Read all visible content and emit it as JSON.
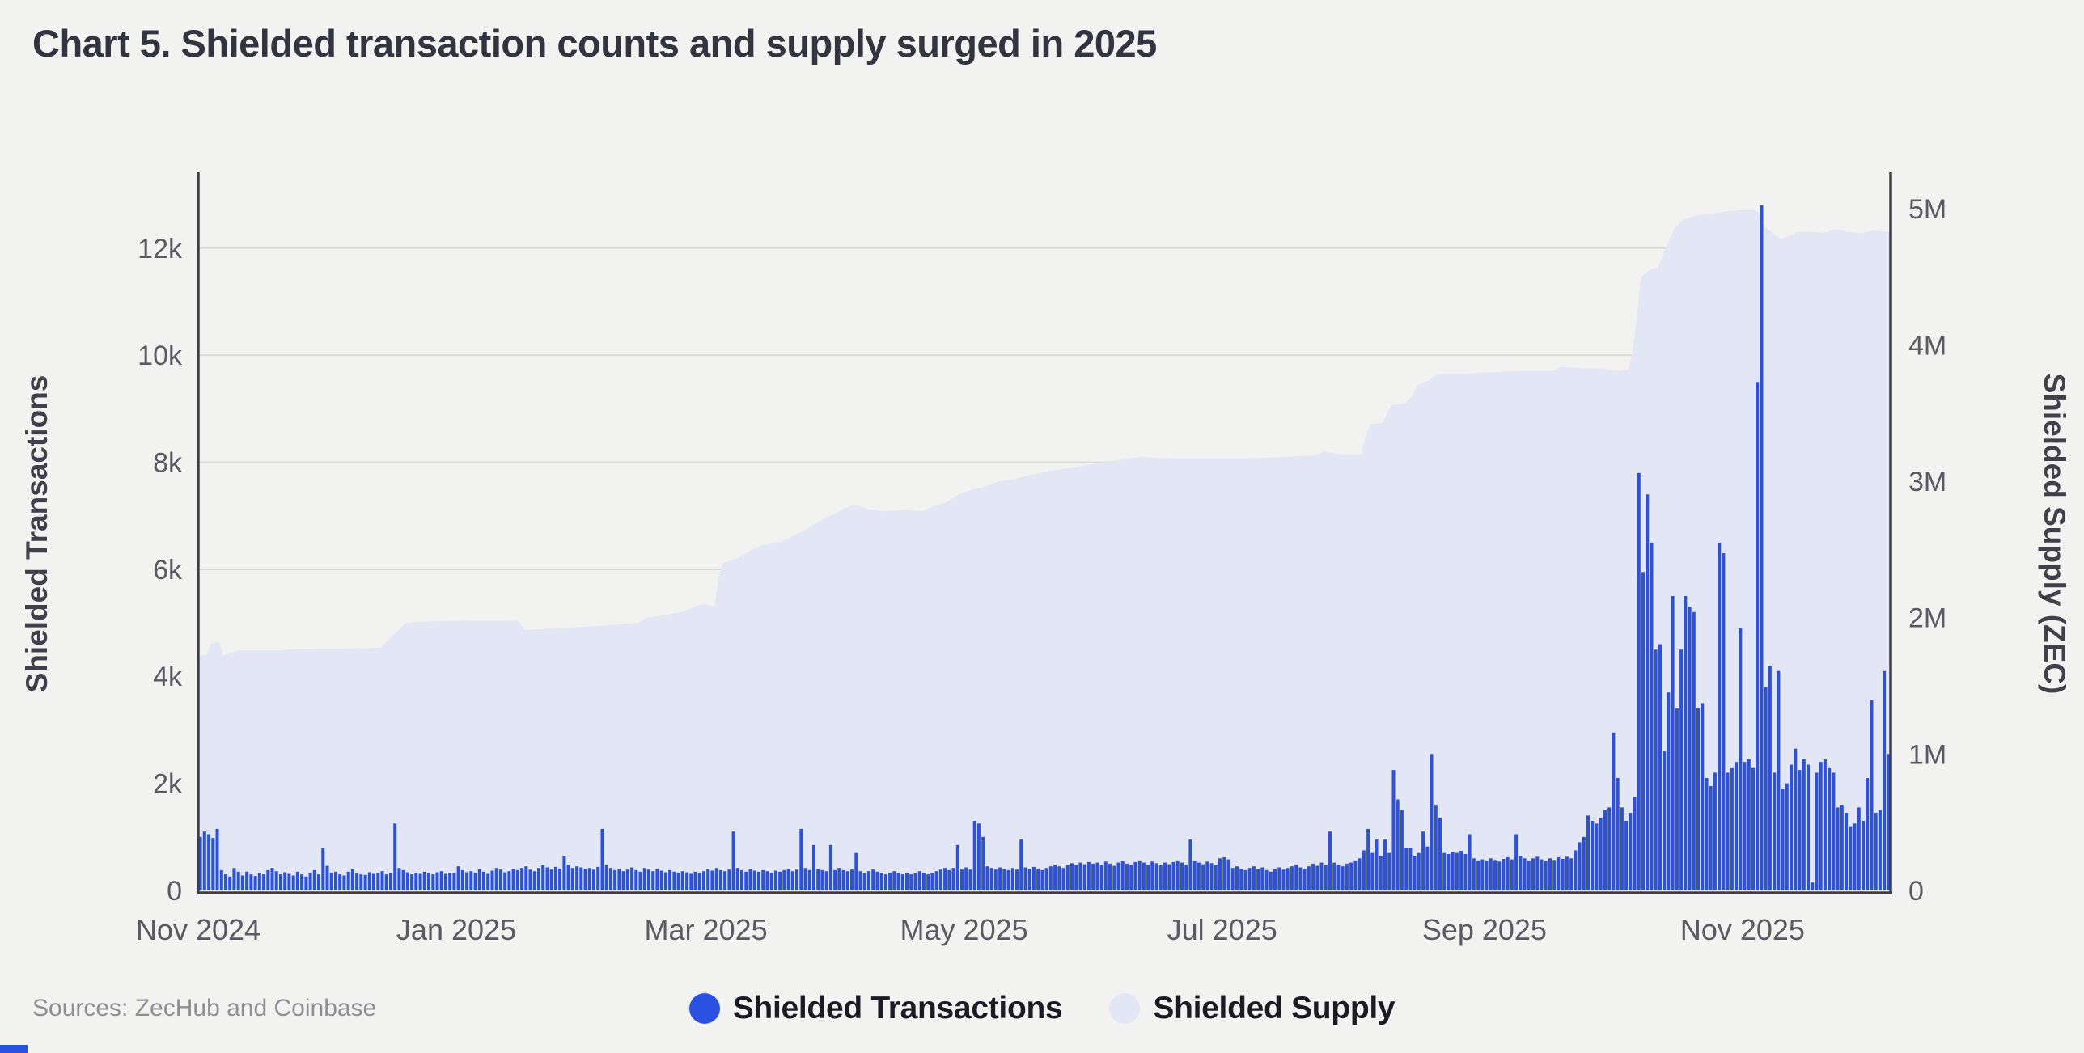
{
  "title": "Chart 5. Shielded transaction counts and supply surged in 2025",
  "source_note": "Sources: ZecHub and Coinbase",
  "colors": {
    "background": "#f2f2f0",
    "bar_blue": "#2a51e2",
    "area_lavender": "#e3e6f4",
    "gridline": "#dadada",
    "axis_line": "#3f3e46",
    "tick_text": "#5b5a63",
    "axis_title_text": "#413f49",
    "title_text": "#343340",
    "legend_text": "#1c1b23",
    "source_text": "#8e8e95"
  },
  "legend": {
    "items": [
      {
        "label": "Shielded Transactions",
        "color": "#2a51e2"
      },
      {
        "label": "Shielded Supply",
        "color": "#e3e6f4"
      }
    ]
  },
  "chart_data": {
    "type": "bar",
    "subtype": "daily bar series (left axis) + supply area series (right axis)",
    "title": "Chart 5. Shielded transaction counts and supply surged in 2025",
    "xlabel": "",
    "start_date": "2024-11-01",
    "x_ticks": [
      {
        "date": "2024-11-01",
        "label": "Nov 2024"
      },
      {
        "date": "2025-01-01",
        "label": "Jan 2025"
      },
      {
        "date": "2025-03-01",
        "label": "Mar 2025"
      },
      {
        "date": "2025-05-01",
        "label": "May 2025"
      },
      {
        "date": "2025-07-01",
        "label": "Jul 2025"
      },
      {
        "date": "2025-09-01",
        "label": "Sep 2025"
      },
      {
        "date": "2025-11-01",
        "label": "Nov 2025"
      }
    ],
    "left_axis": {
      "label": "Shielded Transactions",
      "ticks": [
        {
          "value": 0,
          "label": "0"
        },
        {
          "value": 2000,
          "label": "2k"
        },
        {
          "value": 4000,
          "label": "4k"
        },
        {
          "value": 6000,
          "label": "6k"
        },
        {
          "value": 8000,
          "label": "8k"
        },
        {
          "value": 10000,
          "label": "10k"
        },
        {
          "value": 12000,
          "label": "12k"
        }
      ],
      "range": [
        0,
        13400
      ]
    },
    "right_axis": {
      "label": "Shielded Supply (ZEC)",
      "ticks": [
        {
          "value": 0,
          "label": "0"
        },
        {
          "value": 1,
          "label": "1M"
        },
        {
          "value": 2,
          "label": "2M"
        },
        {
          "value": 3,
          "label": "3M"
        },
        {
          "value": 4,
          "label": "4M"
        },
        {
          "value": 5,
          "label": "5M"
        }
      ],
      "range": [
        0,
        5.25
      ]
    },
    "grid": true,
    "legend_position": "bottom-center",
    "series": [
      {
        "name": "Shielded Transactions",
        "type": "bar",
        "axis": "left",
        "color": "#2a51e2",
        "daily_values": [
          1000,
          1100,
          1050,
          980,
          1150,
          380,
          300,
          260,
          420,
          350,
          280,
          350,
          300,
          270,
          330,
          300,
          380,
          420,
          360,
          300,
          340,
          310,
          280,
          350,
          300,
          260,
          320,
          380,
          300,
          790,
          460,
          320,
          350,
          300,
          280,
          350,
          400,
          330,
          300,
          290,
          340,
          310,
          330,
          360,
          300,
          320,
          1250,
          420,
          380,
          340,
          300,
          330,
          310,
          350,
          320,
          300,
          340,
          360,
          310,
          330,
          320,
          450,
          380,
          340,
          360,
          330,
          400,
          350,
          310,
          370,
          420,
          390,
          340,
          360,
          400,
          380,
          420,
          450,
          390,
          360,
          420,
          480,
          430,
          390,
          440,
          410,
          650,
          480,
          420,
          450,
          430,
          400,
          420,
          390,
          440,
          1150,
          480,
          420,
          380,
          400,
          360,
          390,
          430,
          380,
          350,
          420,
          390,
          360,
          400,
          370,
          340,
          380,
          350,
          330,
          360,
          340,
          310,
          350,
          330,
          360,
          400,
          370,
          420,
          380,
          360,
          390,
          1100,
          420,
          380,
          350,
          400,
          370,
          350,
          380,
          360,
          330,
          370,
          350,
          380,
          400,
          360,
          390,
          1150,
          420,
          380,
          850,
          400,
          380,
          360,
          850,
          380,
          420,
          380,
          360,
          390,
          700,
          360,
          330,
          360,
          390,
          350,
          330,
          300,
          330,
          360,
          330,
          300,
          330,
          300,
          330,
          360,
          330,
          300,
          330,
          360,
          390,
          420,
          380,
          420,
          850,
          390,
          430,
          390,
          1300,
          1250,
          1000,
          450,
          420,
          390,
          430,
          400,
          380,
          420,
          390,
          950,
          430,
          400,
          440,
          410,
          380,
          420,
          450,
          480,
          450,
          420,
          480,
          510,
          480,
          520,
          490,
          530,
          500,
          520,
          480,
          540,
          500,
          460,
          520,
          550,
          500,
          470,
          530,
          560,
          520,
          480,
          540,
          510,
          470,
          520,
          490,
          530,
          560,
          520,
          480,
          950,
          560,
          520,
          490,
          540,
          510,
          480,
          600,
          620,
          580,
          420,
          450,
          400,
          380,
          420,
          450,
          400,
          430,
          380,
          350,
          400,
          430,
          390,
          420,
          450,
          480,
          430,
          400,
          450,
          500,
          460,
          520,
          480,
          1100,
          520,
          480,
          450,
          500,
          520,
          560,
          600,
          750,
          1150,
          700,
          950,
          650,
          950,
          700,
          2250,
          1700,
          1500,
          800,
          800,
          650,
          700,
          1100,
          820,
          2550,
          1600,
          1350,
          700,
          680,
          720,
          700,
          740,
          680,
          1050,
          600,
          560,
          580,
          560,
          600,
          570,
          540,
          590,
          620,
          580,
          1050,
          640,
          600,
          560,
          600,
          630,
          580,
          550,
          600,
          570,
          620,
          590,
          630,
          600,
          750,
          900,
          1000,
          1400,
          1300,
          1250,
          1350,
          1500,
          1550,
          2950,
          2100,
          1550,
          1300,
          1450,
          1750,
          7800,
          5950,
          7400,
          6500,
          4500,
          4600,
          2600,
          3700,
          5500,
          3400,
          4500,
          5500,
          5300,
          5200,
          3400,
          3500,
          2100,
          1950,
          2200,
          6500,
          6300,
          2200,
          2300,
          2400,
          4900,
          2400,
          2450,
          2300,
          9500,
          12800,
          3800,
          4200,
          2200,
          4100,
          1900,
          2000,
          2350,
          2650,
          2250,
          2450,
          2350,
          150,
          2200,
          2400,
          2450,
          2300,
          2200,
          1550,
          1600,
          1450,
          1200,
          1250,
          1550,
          1300,
          2100,
          3550,
          1450,
          1500,
          4100,
          2550
        ]
      },
      {
        "name": "Shielded Supply",
        "type": "area",
        "axis": "right",
        "unit": "million ZEC",
        "color": "#e3e6f4",
        "points": [
          {
            "date": "2024-11-01",
            "zec_m": 1.72
          },
          {
            "date": "2024-11-03",
            "zec_m": 1.73
          },
          {
            "date": "2024-11-04",
            "zec_m": 1.81
          },
          {
            "date": "2024-11-06",
            "zec_m": 1.82
          },
          {
            "date": "2024-11-07",
            "zec_m": 1.72
          },
          {
            "date": "2024-11-09",
            "zec_m": 1.75
          },
          {
            "date": "2024-11-11",
            "zec_m": 1.76
          },
          {
            "date": "2024-11-20",
            "zec_m": 1.76
          },
          {
            "date": "2024-11-24",
            "zec_m": 1.77
          },
          {
            "date": "2024-12-08",
            "zec_m": 1.775
          },
          {
            "date": "2024-12-14",
            "zec_m": 1.78
          },
          {
            "date": "2024-12-16",
            "zec_m": 1.84
          },
          {
            "date": "2024-12-18",
            "zec_m": 1.9
          },
          {
            "date": "2024-12-20",
            "zec_m": 1.96
          },
          {
            "date": "2024-12-22",
            "zec_m": 1.97
          },
          {
            "date": "2025-01-04",
            "zec_m": 1.98
          },
          {
            "date": "2025-01-15",
            "zec_m": 1.98
          },
          {
            "date": "2025-01-16",
            "zec_m": 1.97
          },
          {
            "date": "2025-01-17",
            "zec_m": 1.91
          },
          {
            "date": "2025-01-24",
            "zec_m": 1.92
          },
          {
            "date": "2025-02-04",
            "zec_m": 1.94
          },
          {
            "date": "2025-02-13",
            "zec_m": 1.96
          },
          {
            "date": "2025-02-15",
            "zec_m": 2.0
          },
          {
            "date": "2025-02-20",
            "zec_m": 2.02
          },
          {
            "date": "2025-02-24",
            "zec_m": 2.05
          },
          {
            "date": "2025-02-27",
            "zec_m": 2.09
          },
          {
            "date": "2025-03-01",
            "zec_m": 2.1
          },
          {
            "date": "2025-03-03",
            "zec_m": 2.08
          },
          {
            "date": "2025-03-04",
            "zec_m": 2.3
          },
          {
            "date": "2025-03-05",
            "zec_m": 2.4
          },
          {
            "date": "2025-03-08",
            "zec_m": 2.43
          },
          {
            "date": "2025-03-12",
            "zec_m": 2.5
          },
          {
            "date": "2025-03-14",
            "zec_m": 2.53
          },
          {
            "date": "2025-03-18",
            "zec_m": 2.55
          },
          {
            "date": "2025-03-23",
            "zec_m": 2.62
          },
          {
            "date": "2025-03-28",
            "zec_m": 2.71
          },
          {
            "date": "2025-04-02",
            "zec_m": 2.79
          },
          {
            "date": "2025-04-05",
            "zec_m": 2.83
          },
          {
            "date": "2025-04-08",
            "zec_m": 2.8
          },
          {
            "date": "2025-04-12",
            "zec_m": 2.78
          },
          {
            "date": "2025-04-17",
            "zec_m": 2.79
          },
          {
            "date": "2025-04-21",
            "zec_m": 2.78
          },
          {
            "date": "2025-04-24",
            "zec_m": 2.82
          },
          {
            "date": "2025-04-27",
            "zec_m": 2.85
          },
          {
            "date": "2025-04-30",
            "zec_m": 2.91
          },
          {
            "date": "2025-05-03",
            "zec_m": 2.94
          },
          {
            "date": "2025-05-06",
            "zec_m": 2.96
          },
          {
            "date": "2025-05-09",
            "zec_m": 3.0
          },
          {
            "date": "2025-05-13",
            "zec_m": 3.02
          },
          {
            "date": "2025-05-17",
            "zec_m": 3.05
          },
          {
            "date": "2025-05-22",
            "zec_m": 3.08
          },
          {
            "date": "2025-05-27",
            "zec_m": 3.1
          },
          {
            "date": "2025-06-01",
            "zec_m": 3.13
          },
          {
            "date": "2025-06-07",
            "zec_m": 3.16
          },
          {
            "date": "2025-06-12",
            "zec_m": 3.18
          },
          {
            "date": "2025-06-18",
            "zec_m": 3.17
          },
          {
            "date": "2025-06-26",
            "zec_m": 3.17
          },
          {
            "date": "2025-07-08",
            "zec_m": 3.17
          },
          {
            "date": "2025-07-16",
            "zec_m": 3.18
          },
          {
            "date": "2025-07-23",
            "zec_m": 3.19
          },
          {
            "date": "2025-07-25",
            "zec_m": 3.22
          },
          {
            "date": "2025-07-27",
            "zec_m": 3.21
          },
          {
            "date": "2025-07-30",
            "zec_m": 3.2
          },
          {
            "date": "2025-08-03",
            "zec_m": 3.2
          },
          {
            "date": "2025-08-04",
            "zec_m": 3.35
          },
          {
            "date": "2025-08-05",
            "zec_m": 3.42
          },
          {
            "date": "2025-08-08",
            "zec_m": 3.43
          },
          {
            "date": "2025-08-09",
            "zec_m": 3.5
          },
          {
            "date": "2025-08-10",
            "zec_m": 3.56
          },
          {
            "date": "2025-08-13",
            "zec_m": 3.57
          },
          {
            "date": "2025-08-15",
            "zec_m": 3.63
          },
          {
            "date": "2025-08-16",
            "zec_m": 3.7
          },
          {
            "date": "2025-08-17",
            "zec_m": 3.72
          },
          {
            "date": "2025-08-19",
            "zec_m": 3.74
          },
          {
            "date": "2025-08-20",
            "zec_m": 3.77
          },
          {
            "date": "2025-08-21",
            "zec_m": 3.79
          },
          {
            "date": "2025-08-27",
            "zec_m": 3.79
          },
          {
            "date": "2025-09-03",
            "zec_m": 3.8
          },
          {
            "date": "2025-09-10",
            "zec_m": 3.81
          },
          {
            "date": "2025-09-17",
            "zec_m": 3.81
          },
          {
            "date": "2025-09-19",
            "zec_m": 3.84
          },
          {
            "date": "2025-09-24",
            "zec_m": 3.83
          },
          {
            "date": "2025-09-28",
            "zec_m": 3.83
          },
          {
            "date": "2025-10-02",
            "zec_m": 3.81
          },
          {
            "date": "2025-10-05",
            "zec_m": 3.82
          },
          {
            "date": "2025-10-06",
            "zec_m": 3.95
          },
          {
            "date": "2025-10-07",
            "zec_m": 4.2
          },
          {
            "date": "2025-10-08",
            "zec_m": 4.5
          },
          {
            "date": "2025-10-10",
            "zec_m": 4.55
          },
          {
            "date": "2025-10-12",
            "zec_m": 4.57
          },
          {
            "date": "2025-10-14",
            "zec_m": 4.72
          },
          {
            "date": "2025-10-16",
            "zec_m": 4.86
          },
          {
            "date": "2025-10-18",
            "zec_m": 4.92
          },
          {
            "date": "2025-10-21",
            "zec_m": 4.95
          },
          {
            "date": "2025-10-24",
            "zec_m": 4.96
          },
          {
            "date": "2025-10-28",
            "zec_m": 4.98
          },
          {
            "date": "2025-11-01",
            "zec_m": 4.99
          },
          {
            "date": "2025-11-04",
            "zec_m": 4.99
          },
          {
            "date": "2025-11-05",
            "zec_m": 4.96
          },
          {
            "date": "2025-11-06",
            "zec_m": 4.88
          },
          {
            "date": "2025-11-08",
            "zec_m": 4.82
          },
          {
            "date": "2025-11-10",
            "zec_m": 4.78
          },
          {
            "date": "2025-11-12",
            "zec_m": 4.8
          },
          {
            "date": "2025-11-14",
            "zec_m": 4.83
          },
          {
            "date": "2025-11-18",
            "zec_m": 4.83
          },
          {
            "date": "2025-11-20",
            "zec_m": 4.82
          },
          {
            "date": "2025-11-23",
            "zec_m": 4.85
          },
          {
            "date": "2025-11-26",
            "zec_m": 4.83
          },
          {
            "date": "2025-11-29",
            "zec_m": 4.82
          },
          {
            "date": "2025-12-02",
            "zec_m": 4.84
          },
          {
            "date": "2025-12-05",
            "zec_m": 4.83
          }
        ]
      }
    ]
  }
}
